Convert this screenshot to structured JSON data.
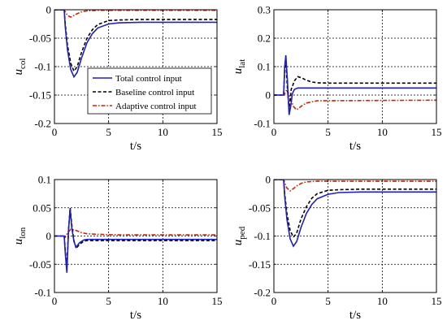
{
  "chart_data": [
    {
      "type": "line",
      "xlabel": "t/s",
      "ylabel_main": "u",
      "ylabel_sub": "col",
      "xlim": [
        0,
        15
      ],
      "ylim": [
        -0.2,
        0
      ],
      "xticks": [
        0,
        5,
        10,
        15
      ],
      "yticks": [
        0,
        -0.05,
        -0.1,
        -0.15,
        -0.2
      ],
      "ytick_labels": [
        "0",
        "-0.05",
        "-0.1",
        "-0.15",
        "-0.2"
      ],
      "grid": true,
      "legend": "center-left",
      "series": [
        {
          "name": "Total control input",
          "color": "#1f1fbf",
          "style": "solid",
          "x": [
            0,
            0.9,
            1.0,
            1.2,
            1.5,
            1.8,
            2.1,
            2.5,
            3.0,
            3.5,
            4.0,
            5.0,
            6.0,
            8.0,
            15.0
          ],
          "y": [
            0,
            0,
            -0.03,
            -0.07,
            -0.105,
            -0.118,
            -0.11,
            -0.085,
            -0.058,
            -0.042,
            -0.032,
            -0.025,
            -0.023,
            -0.022,
            -0.022
          ]
        },
        {
          "name": "Baseline control input",
          "color": "#000000",
          "style": "dashed",
          "x": [
            0,
            0.9,
            1.0,
            1.2,
            1.5,
            1.8,
            2.1,
            2.5,
            3.0,
            3.5,
            4.0,
            5.0,
            6.0,
            8.0,
            15.0
          ],
          "y": [
            0,
            0,
            -0.025,
            -0.062,
            -0.094,
            -0.108,
            -0.1,
            -0.075,
            -0.05,
            -0.035,
            -0.026,
            -0.019,
            -0.018,
            -0.017,
            -0.017
          ]
        },
        {
          "name": "Adaptive control input",
          "color": "#cc2200",
          "style": "dashdot",
          "x": [
            0,
            0.9,
            1.0,
            1.2,
            1.5,
            1.8,
            2.2,
            2.6,
            3.0,
            4.0,
            15.0
          ],
          "y": [
            0,
            0,
            -0.004,
            -0.01,
            -0.013,
            -0.01,
            -0.006,
            -0.003,
            -0.002,
            -0.001,
            -0.001
          ]
        }
      ]
    },
    {
      "type": "line",
      "xlabel": "t/s",
      "ylabel_main": "u",
      "ylabel_sub": "lat",
      "xlim": [
        0,
        15
      ],
      "ylim": [
        -0.1,
        0.3
      ],
      "xticks": [
        0,
        5,
        10,
        15
      ],
      "yticks": [
        0.3,
        0.2,
        0.1,
        0,
        -0.1
      ],
      "ytick_labels": [
        "0.3",
        "0.2",
        "0.1",
        "0",
        "-0.1"
      ],
      "grid": true,
      "series": [
        {
          "name": "Total control input",
          "color": "#1f1fbf",
          "style": "solid",
          "x": [
            0,
            0.9,
            1.0,
            1.1,
            1.25,
            1.4,
            1.55,
            1.7,
            1.9,
            2.2,
            2.6,
            3.0,
            4.0,
            15.0
          ],
          "y": [
            0,
            0,
            0.1,
            0.14,
            0.05,
            -0.07,
            -0.04,
            0.005,
            0.02,
            0.025,
            0.025,
            0.025,
            0.025,
            0.025
          ]
        },
        {
          "name": "Baseline control input",
          "color": "#000000",
          "style": "dashed",
          "x": [
            0,
            0.9,
            1.0,
            1.1,
            1.25,
            1.4,
            1.6,
            1.9,
            2.2,
            2.6,
            3.0,
            3.5,
            4.0,
            5.0,
            15.0
          ],
          "y": [
            0,
            0,
            0.09,
            0.12,
            0.02,
            -0.05,
            0.02,
            0.05,
            0.065,
            0.06,
            0.052,
            0.046,
            0.043,
            0.042,
            0.042
          ]
        },
        {
          "name": "Adaptive control input",
          "color": "#cc2200",
          "style": "dashdot",
          "x": [
            0,
            0.9,
            1.0,
            1.2,
            1.5,
            1.8,
            2.1,
            2.5,
            3.0,
            4.0,
            15.0
          ],
          "y": [
            0,
            0,
            0.005,
            0.02,
            -0.01,
            -0.04,
            -0.052,
            -0.04,
            -0.028,
            -0.02,
            -0.018
          ]
        }
      ]
    },
    {
      "type": "line",
      "xlabel": "t/s",
      "ylabel_main": "u",
      "ylabel_sub": "lon",
      "xlim": [
        0,
        15
      ],
      "ylim": [
        -0.1,
        0.1
      ],
      "xticks": [
        0,
        5,
        10,
        15
      ],
      "yticks": [
        0.1,
        0.05,
        0,
        -0.05,
        -0.1
      ],
      "ytick_labels": [
        "0.1",
        "0.05",
        "0",
        "-0.05",
        "-0.1"
      ],
      "grid": true,
      "series": [
        {
          "name": "Total control input",
          "color": "#1f1fbf",
          "style": "solid",
          "x": [
            0,
            0.9,
            1.0,
            1.15,
            1.3,
            1.45,
            1.6,
            1.8,
            2.0,
            2.3,
            2.7,
            3.0,
            15.0
          ],
          "y": [
            0,
            0,
            -0.03,
            -0.065,
            0.01,
            0.048,
            0.015,
            -0.01,
            -0.02,
            -0.012,
            -0.007,
            -0.006,
            -0.006
          ]
        },
        {
          "name": "Baseline control input",
          "color": "#000000",
          "style": "dashed",
          "x": [
            0,
            0.9,
            1.0,
            1.15,
            1.3,
            1.45,
            1.6,
            1.8,
            2.0,
            2.3,
            2.7,
            3.0,
            15.0
          ],
          "y": [
            0,
            0,
            -0.025,
            -0.055,
            0.01,
            0.05,
            0.02,
            -0.008,
            -0.022,
            -0.015,
            -0.009,
            -0.008,
            -0.008
          ]
        },
        {
          "name": "Adaptive control input",
          "color": "#cc2200",
          "style": "dashdot",
          "x": [
            0,
            0.9,
            1.0,
            1.2,
            1.5,
            2.0,
            2.5,
            3.0,
            4.0,
            6.0,
            15.0
          ],
          "y": [
            0,
            0,
            -0.002,
            0.005,
            0.012,
            0.01,
            0.006,
            0.004,
            0.003,
            0.002,
            0.002
          ]
        }
      ]
    },
    {
      "type": "line",
      "xlabel": "t/s",
      "ylabel_main": "u",
      "ylabel_sub": "ped",
      "xlim": [
        0,
        15
      ],
      "ylim": [
        -0.2,
        0
      ],
      "xticks": [
        0,
        5,
        10,
        15
      ],
      "yticks": [
        0,
        -0.05,
        -0.1,
        -0.15,
        -0.2
      ],
      "ytick_labels": [
        "0",
        "-0.05",
        "-0.1",
        "-0.15",
        "-0.2"
      ],
      "grid": true,
      "series": [
        {
          "name": "Total control input",
          "color": "#1f1fbf",
          "style": "solid",
          "x": [
            0,
            0.9,
            1.0,
            1.2,
            1.5,
            1.8,
            2.1,
            2.5,
            3.0,
            3.5,
            4.0,
            5.0,
            6.0,
            8.0,
            15.0
          ],
          "y": [
            0,
            0,
            -0.03,
            -0.07,
            -0.105,
            -0.118,
            -0.11,
            -0.085,
            -0.06,
            -0.044,
            -0.034,
            -0.026,
            -0.023,
            -0.022,
            -0.022
          ]
        },
        {
          "name": "Baseline control input",
          "color": "#000000",
          "style": "dashed",
          "x": [
            0,
            0.9,
            1.0,
            1.2,
            1.5,
            1.8,
            2.1,
            2.5,
            3.0,
            3.5,
            4.0,
            5.0,
            6.0,
            8.0,
            15.0
          ],
          "y": [
            0,
            0,
            -0.025,
            -0.06,
            -0.09,
            -0.102,
            -0.095,
            -0.07,
            -0.048,
            -0.033,
            -0.025,
            -0.019,
            -0.018,
            -0.017,
            -0.017
          ]
        },
        {
          "name": "Adaptive control input",
          "color": "#cc2200",
          "style": "dashdot",
          "x": [
            0,
            0.9,
            1.0,
            1.2,
            1.5,
            1.8,
            2.2,
            2.6,
            3.0,
            4.0,
            15.0
          ],
          "y": [
            0,
            0,
            -0.006,
            -0.015,
            -0.02,
            -0.016,
            -0.01,
            -0.006,
            -0.004,
            -0.003,
            -0.003
          ]
        }
      ]
    }
  ]
}
